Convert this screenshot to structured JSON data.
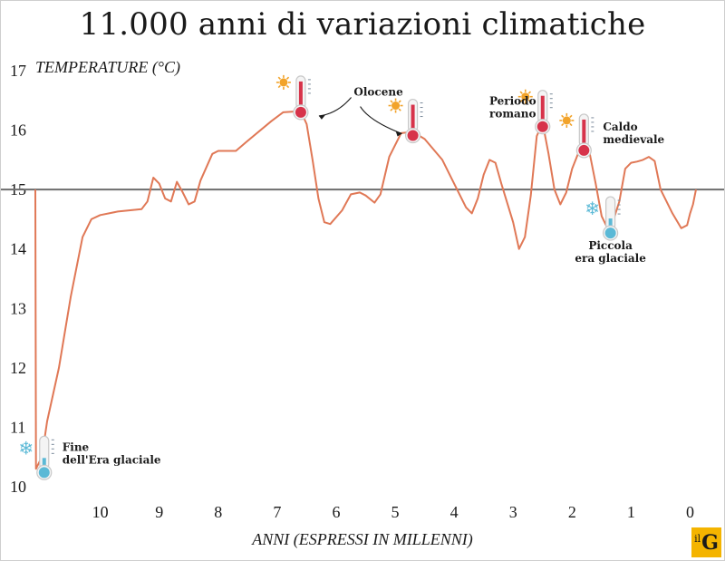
{
  "chart_data": {
    "type": "line",
    "title": "11.000 anni di variazioni climatiche",
    "ylabel": "TEMPERATURE (°C)",
    "xlabel": "ANNI (ESPRESSI IN MILLENNI)",
    "x_ticks": [
      "10",
      "9",
      "8",
      "7",
      "6",
      "5",
      "4",
      "3",
      "2",
      "1",
      "0"
    ],
    "y_ticks": [
      "10",
      "11",
      "12",
      "13",
      "14",
      "15",
      "16",
      "17"
    ],
    "xlim": [
      11.1,
      -0.1
    ],
    "ylim": [
      10,
      17
    ],
    "reference_line": 15,
    "series": [
      {
        "color": "#e07856",
        "points": [
          [
            11.1,
            15.0
          ],
          [
            11.09,
            10.3
          ],
          [
            10.99,
            10.5
          ],
          [
            10.9,
            11.1
          ],
          [
            10.7,
            12.0
          ],
          [
            10.5,
            13.2
          ],
          [
            10.3,
            14.2
          ],
          [
            10.15,
            14.5
          ],
          [
            10.0,
            14.57
          ],
          [
            9.7,
            14.63
          ],
          [
            9.3,
            14.67
          ],
          [
            9.2,
            14.8
          ],
          [
            9.1,
            15.2
          ],
          [
            9.0,
            15.1
          ],
          [
            8.9,
            14.85
          ],
          [
            8.8,
            14.8
          ],
          [
            8.7,
            15.13
          ],
          [
            8.6,
            14.95
          ],
          [
            8.5,
            14.75
          ],
          [
            8.4,
            14.8
          ],
          [
            8.3,
            15.15
          ],
          [
            8.1,
            15.6
          ],
          [
            8.0,
            15.65
          ],
          [
            7.7,
            15.65
          ],
          [
            7.5,
            15.82
          ],
          [
            7.1,
            16.15
          ],
          [
            6.9,
            16.3
          ],
          [
            6.6,
            16.32
          ],
          [
            6.5,
            16.1
          ],
          [
            6.4,
            15.5
          ],
          [
            6.3,
            14.85
          ],
          [
            6.2,
            14.45
          ],
          [
            6.1,
            14.42
          ],
          [
            5.9,
            14.65
          ],
          [
            5.75,
            14.92
          ],
          [
            5.6,
            14.95
          ],
          [
            5.5,
            14.9
          ],
          [
            5.35,
            14.78
          ],
          [
            5.25,
            14.92
          ],
          [
            5.1,
            15.55
          ],
          [
            4.9,
            15.95
          ],
          [
            4.7,
            15.97
          ],
          [
            4.5,
            15.85
          ],
          [
            4.2,
            15.5
          ],
          [
            4.0,
            15.1
          ],
          [
            3.8,
            14.7
          ],
          [
            3.7,
            14.6
          ],
          [
            3.6,
            14.85
          ],
          [
            3.5,
            15.25
          ],
          [
            3.4,
            15.5
          ],
          [
            3.3,
            15.45
          ],
          [
            3.2,
            15.1
          ],
          [
            3.0,
            14.45
          ],
          [
            2.9,
            14.0
          ],
          [
            2.8,
            14.2
          ],
          [
            2.7,
            14.9
          ],
          [
            2.6,
            15.9
          ],
          [
            2.5,
            16.12
          ],
          [
            2.4,
            15.6
          ],
          [
            2.3,
            15.0
          ],
          [
            2.2,
            14.75
          ],
          [
            2.1,
            14.95
          ],
          [
            2.0,
            15.35
          ],
          [
            1.9,
            15.6
          ],
          [
            1.8,
            15.72
          ],
          [
            1.7,
            15.6
          ],
          [
            1.6,
            15.1
          ],
          [
            1.5,
            14.55
          ],
          [
            1.4,
            14.35
          ],
          [
            1.35,
            14.33
          ],
          [
            1.2,
            14.8
          ],
          [
            1.1,
            15.35
          ],
          [
            1.0,
            15.45
          ],
          [
            0.9,
            15.47
          ],
          [
            0.8,
            15.5
          ],
          [
            0.7,
            15.55
          ],
          [
            0.6,
            15.48
          ],
          [
            0.5,
            15.0
          ],
          [
            0.4,
            14.8
          ],
          [
            0.3,
            14.6
          ],
          [
            0.15,
            14.35
          ],
          [
            0.05,
            14.4
          ],
          [
            0.0,
            14.6
          ],
          [
            -0.05,
            14.75
          ],
          [
            -0.1,
            15.0
          ]
        ]
      }
    ],
    "annotations": [
      {
        "lines": [
          "Fine",
          "dell'Era glaciale"
        ],
        "x": 10.95,
        "y": 10.3,
        "kind": "cold"
      },
      {
        "lines": [
          "Olocene"
        ],
        "x": 6.6,
        "y": 16.3,
        "kind": "hot"
      },
      {
        "lines": [
          "Olocene"
        ],
        "x": 4.7,
        "y": 15.97,
        "kind": "hot"
      },
      {
        "lines": [
          "Periodo",
          "romano"
        ],
        "x": 2.5,
        "y": 16.12,
        "kind": "hot"
      },
      {
        "lines": [
          "Caldo",
          "medievale"
        ],
        "x": 1.8,
        "y": 15.72,
        "kind": "hot"
      },
      {
        "lines": [
          "Piccola",
          "era glaciale"
        ],
        "x": 1.35,
        "y": 14.33,
        "kind": "cold"
      }
    ]
  },
  "colors": {
    "line": "#e07856",
    "hot_bulb": "#d7334a",
    "cold_bulb": "#5bb9d6",
    "sun": "#f2a32a",
    "reference_line": "#6e6e6e",
    "logo_bg": "#f4b400"
  },
  "logo": {
    "small": "il",
    "big": "G"
  }
}
